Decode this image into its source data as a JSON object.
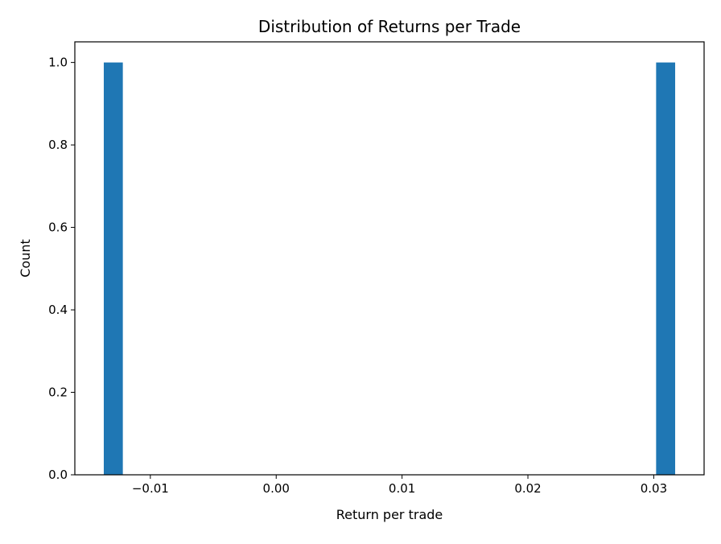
{
  "chart_data": {
    "type": "histogram",
    "title": "Distribution of Returns per Trade",
    "xlabel": "Return per trade",
    "ylabel": "Count",
    "values": [
      -0.0137,
      0.0317
    ],
    "bins": 30,
    "xlim": [
      -0.016,
      0.034
    ],
    "ylim": [
      0,
      1.05
    ],
    "xticks": [
      -0.01,
      0.0,
      0.01,
      0.02,
      0.03
    ],
    "xtick_labels": [
      "−0.01",
      "0.00",
      "0.01",
      "0.02",
      "0.03"
    ],
    "yticks": [
      0,
      0.2,
      0.4,
      0.6,
      0.8,
      1.0
    ],
    "ytick_labels": [
      "0.0",
      "0.2",
      "0.4",
      "0.6",
      "0.8",
      "1.0"
    ],
    "grid": false,
    "bar_color": "#1f77b4"
  }
}
